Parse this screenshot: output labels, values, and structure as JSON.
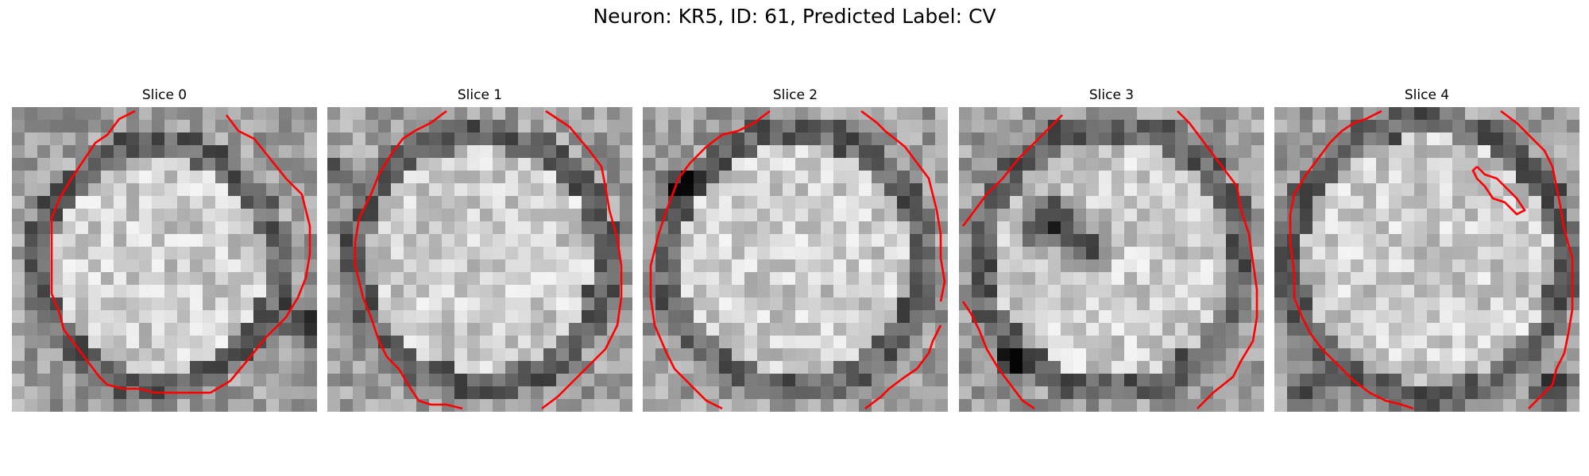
{
  "figure": {
    "title": "Neuron: KR5, ID: 61, Predicted Label: CV"
  },
  "slices": [
    {
      "title": "Slice 0"
    },
    {
      "title": "Slice 1"
    },
    {
      "title": "Slice 2"
    },
    {
      "title": "Slice 3"
    },
    {
      "title": "Slice 4"
    }
  ],
  "colors": {
    "contour": "#ff0000",
    "background": "#ffffff"
  }
}
